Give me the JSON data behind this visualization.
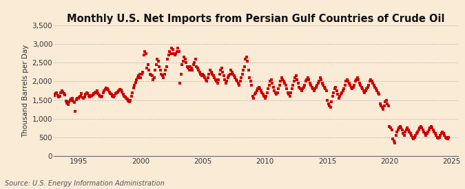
{
  "title": "Monthly U.S. Net Imports from Persian Gulf Countries of Crude Oil",
  "ylabel": "Thousand Barrels per Day",
  "source": "Source: U.S. Energy Information Administration",
  "background_color": "#faebd7",
  "dot_color": "#cc0000",
  "dot_size": 7,
  "ylim": [
    0,
    3500
  ],
  "yticks": [
    0,
    500,
    1000,
    1500,
    2000,
    2500,
    3000,
    3500
  ],
  "xlim_start": 1993.0,
  "xlim_end": 2025.5,
  "xticks": [
    1995,
    2000,
    2005,
    2010,
    2015,
    2020,
    2025
  ],
  "grid_color": "#aaaaaa",
  "grid_style": "--",
  "title_fontsize": 10.5,
  "ylabel_fontsize": 7.5,
  "source_fontsize": 7,
  "tick_fontsize": 7.5,
  "data": {
    "dates": [
      1993.0,
      1993.083,
      1993.167,
      1993.25,
      1993.333,
      1993.417,
      1993.5,
      1993.583,
      1993.667,
      1993.75,
      1993.833,
      1993.917,
      1994.0,
      1994.083,
      1994.167,
      1994.25,
      1994.333,
      1994.417,
      1994.5,
      1994.583,
      1994.667,
      1994.75,
      1994.833,
      1994.917,
      1995.0,
      1995.083,
      1995.167,
      1995.25,
      1995.333,
      1995.417,
      1995.5,
      1995.583,
      1995.667,
      1995.75,
      1995.833,
      1995.917,
      1996.0,
      1996.083,
      1996.167,
      1996.25,
      1996.333,
      1996.417,
      1996.5,
      1996.583,
      1996.667,
      1996.75,
      1996.833,
      1996.917,
      1997.0,
      1997.083,
      1997.167,
      1997.25,
      1997.333,
      1997.417,
      1997.5,
      1997.583,
      1997.667,
      1997.75,
      1997.833,
      1997.917,
      1998.0,
      1998.083,
      1998.167,
      1998.25,
      1998.333,
      1998.417,
      1998.5,
      1998.583,
      1998.667,
      1998.75,
      1998.833,
      1998.917,
      1999.0,
      1999.083,
      1999.167,
      1999.25,
      1999.333,
      1999.417,
      1999.5,
      1999.583,
      1999.667,
      1999.75,
      1999.833,
      1999.917,
      2000.0,
      2000.083,
      2000.167,
      2000.25,
      2000.333,
      2000.417,
      2000.5,
      2000.583,
      2000.667,
      2000.75,
      2000.833,
      2000.917,
      2001.0,
      2001.083,
      2001.167,
      2001.25,
      2001.333,
      2001.417,
      2001.5,
      2001.583,
      2001.667,
      2001.75,
      2001.833,
      2001.917,
      2002.0,
      2002.083,
      2002.167,
      2002.25,
      2002.333,
      2002.417,
      2002.5,
      2002.583,
      2002.667,
      2002.75,
      2002.833,
      2002.917,
      2003.0,
      2003.083,
      2003.167,
      2003.25,
      2003.333,
      2003.417,
      2003.5,
      2003.583,
      2003.667,
      2003.75,
      2003.833,
      2003.917,
      2004.0,
      2004.083,
      2004.167,
      2004.25,
      2004.333,
      2004.417,
      2004.5,
      2004.583,
      2004.667,
      2004.75,
      2004.833,
      2004.917,
      2005.0,
      2005.083,
      2005.167,
      2005.25,
      2005.333,
      2005.417,
      2005.5,
      2005.583,
      2005.667,
      2005.75,
      2005.833,
      2005.917,
      2006.0,
      2006.083,
      2006.167,
      2006.25,
      2006.333,
      2006.417,
      2006.5,
      2006.583,
      2006.667,
      2006.75,
      2006.833,
      2006.917,
      2007.0,
      2007.083,
      2007.167,
      2007.25,
      2007.333,
      2007.417,
      2007.5,
      2007.583,
      2007.667,
      2007.75,
      2007.833,
      2007.917,
      2008.0,
      2008.083,
      2008.167,
      2008.25,
      2008.333,
      2008.417,
      2008.5,
      2008.583,
      2008.667,
      2008.75,
      2008.833,
      2008.917,
      2009.0,
      2009.083,
      2009.167,
      2009.25,
      2009.333,
      2009.417,
      2009.5,
      2009.583,
      2009.667,
      2009.75,
      2009.833,
      2009.917,
      2010.0,
      2010.083,
      2010.167,
      2010.25,
      2010.333,
      2010.417,
      2010.5,
      2010.583,
      2010.667,
      2010.75,
      2010.833,
      2010.917,
      2011.0,
      2011.083,
      2011.167,
      2011.25,
      2011.333,
      2011.417,
      2011.5,
      2011.583,
      2011.667,
      2011.75,
      2011.833,
      2011.917,
      2012.0,
      2012.083,
      2012.167,
      2012.25,
      2012.333,
      2012.417,
      2012.5,
      2012.583,
      2012.667,
      2012.75,
      2012.833,
      2012.917,
      2013.0,
      2013.083,
      2013.167,
      2013.25,
      2013.333,
      2013.417,
      2013.5,
      2013.583,
      2013.667,
      2013.75,
      2013.833,
      2013.917,
      2014.0,
      2014.083,
      2014.167,
      2014.25,
      2014.333,
      2014.417,
      2014.5,
      2014.583,
      2014.667,
      2014.75,
      2014.833,
      2014.917,
      2015.0,
      2015.083,
      2015.167,
      2015.25,
      2015.333,
      2015.417,
      2015.5,
      2015.583,
      2015.667,
      2015.75,
      2015.833,
      2015.917,
      2016.0,
      2016.083,
      2016.167,
      2016.25,
      2016.333,
      2016.417,
      2016.5,
      2016.583,
      2016.667,
      2016.75,
      2016.833,
      2016.917,
      2017.0,
      2017.083,
      2017.167,
      2017.25,
      2017.333,
      2017.417,
      2017.5,
      2017.583,
      2017.667,
      2017.75,
      2017.833,
      2017.917,
      2018.0,
      2018.083,
      2018.167,
      2018.25,
      2018.333,
      2018.417,
      2018.5,
      2018.583,
      2018.667,
      2018.75,
      2018.833,
      2018.917,
      2019.0,
      2019.083,
      2019.167,
      2019.25,
      2019.333,
      2019.417,
      2019.5,
      2019.583,
      2019.667,
      2019.75,
      2019.833,
      2019.917,
      2020.0,
      2020.083,
      2020.167,
      2020.25,
      2020.333,
      2020.417,
      2020.5,
      2020.583,
      2020.667,
      2020.75,
      2020.833,
      2020.917,
      2021.0,
      2021.083,
      2021.167,
      2021.25,
      2021.333,
      2021.417,
      2021.5,
      2021.583,
      2021.667,
      2021.75,
      2021.833,
      2021.917,
      2022.0,
      2022.083,
      2022.167,
      2022.25,
      2022.333,
      2022.417,
      2022.5,
      2022.583,
      2022.667,
      2022.75,
      2022.833,
      2022.917,
      2023.0,
      2023.083,
      2023.167,
      2023.25,
      2023.333,
      2023.417,
      2023.5,
      2023.583,
      2023.667,
      2023.75,
      2023.833,
      2023.917,
      2024.0,
      2024.083,
      2024.167,
      2024.25,
      2024.333,
      2024.417,
      2024.5,
      2024.583,
      2024.667,
      2024.75
    ],
    "values": [
      1650,
      1620,
      1680,
      1700,
      1620,
      1580,
      1610,
      1700,
      1750,
      1720,
      1680,
      1640,
      1480,
      1420,
      1390,
      1450,
      1500,
      1520,
      1550,
      1480,
      1430,
      1200,
      1510,
      1540,
      1550,
      1580,
      1600,
      1680,
      1560,
      1540,
      1580,
      1650,
      1700,
      1680,
      1620,
      1590,
      1600,
      1620,
      1640,
      1680,
      1700,
      1720,
      1750,
      1680,
      1640,
      1600,
      1580,
      1610,
      1700,
      1750,
      1780,
      1820,
      1800,
      1760,
      1720,
      1680,
      1650,
      1600,
      1580,
      1620,
      1680,
      1700,
      1720,
      1750,
      1780,
      1760,
      1720,
      1650,
      1600,
      1580,
      1540,
      1520,
      1480,
      1450,
      1500,
      1600,
      1700,
      1820,
      1900,
      1980,
      2050,
      2100,
      2150,
      2200,
      2100,
      2200,
      2250,
      2700,
      2800,
      2750,
      2350,
      2450,
      2300,
      2200,
      2180,
      2150,
      2050,
      2100,
      2300,
      2450,
      2600,
      2550,
      2400,
      2300,
      2200,
      2150,
      2100,
      2200,
      2300,
      2400,
      2600,
      2700,
      2800,
      2750,
      2900,
      2850,
      2750,
      2700,
      2750,
      2800,
      2900,
      2800,
      1950,
      2200,
      2450,
      2550,
      2650,
      2600,
      2500,
      2400,
      2350,
      2300,
      2400,
      2350,
      2300,
      2450,
      2500,
      2600,
      2400,
      2350,
      2300,
      2250,
      2200,
      2150,
      2200,
      2150,
      2100,
      2050,
      2000,
      2100,
      2200,
      2300,
      2250,
      2200,
      2150,
      2100,
      2050,
      2000,
      1950,
      2050,
      2200,
      2300,
      2350,
      2250,
      2150,
      2050,
      1950,
      2000,
      2100,
      2150,
      2200,
      2300,
      2250,
      2200,
      2150,
      2100,
      2050,
      2000,
      1950,
      1900,
      2000,
      2100,
      2200,
      2300,
      2400,
      2600,
      2650,
      2550,
      2300,
      2100,
      2000,
      1900,
      1600,
      1550,
      1650,
      1700,
      1750,
      1800,
      1850,
      1800,
      1750,
      1700,
      1650,
      1600,
      1550,
      1600,
      1700,
      1800,
      1900,
      2000,
      2050,
      1950,
      1850,
      1750,
      1700,
      1650,
      1700,
      1800,
      1900,
      2000,
      2100,
      2050,
      2000,
      1950,
      1900,
      1800,
      1700,
      1650,
      1600,
      1700,
      1800,
      1900,
      2000,
      2100,
      2150,
      2050,
      1950,
      1850,
      1800,
      1750,
      1800,
      1850,
      1900,
      2000,
      2050,
      2100,
      2050,
      1950,
      1900,
      1850,
      1800,
      1750,
      1800,
      1850,
      1900,
      1950,
      2000,
      2100,
      2050,
      1950,
      1900,
      1850,
      1800,
      1750,
      1500,
      1400,
      1350,
      1300,
      1450,
      1600,
      1700,
      1800,
      1850,
      1750,
      1650,
      1550,
      1600,
      1650,
      1700,
      1750,
      1800,
      1900,
      2000,
      2050,
      2000,
      1950,
      1900,
      1850,
      1800,
      1850,
      1900,
      2000,
      2050,
      2100,
      2050,
      1950,
      1900,
      1850,
      1800,
      1750,
      1700,
      1750,
      1800,
      1850,
      1900,
      2000,
      2050,
      2000,
      1950,
      1900,
      1850,
      1800,
      1750,
      1700,
      1650,
      1400,
      1350,
      1300,
      1250,
      1350,
      1450,
      1500,
      1400,
      1350,
      800,
      750,
      700,
      450,
      400,
      350,
      550,
      650,
      700,
      750,
      800,
      750,
      700,
      600,
      550,
      650,
      700,
      750,
      700,
      650,
      600,
      550,
      500,
      450,
      500,
      550,
      600,
      650,
      700,
      750,
      800,
      750,
      700,
      650,
      600,
      550,
      600,
      650,
      700,
      750,
      800,
      750,
      700,
      650,
      600,
      550,
      500,
      480,
      500,
      550,
      600,
      650,
      600,
      550,
      500,
      480,
      460,
      500
    ]
  }
}
